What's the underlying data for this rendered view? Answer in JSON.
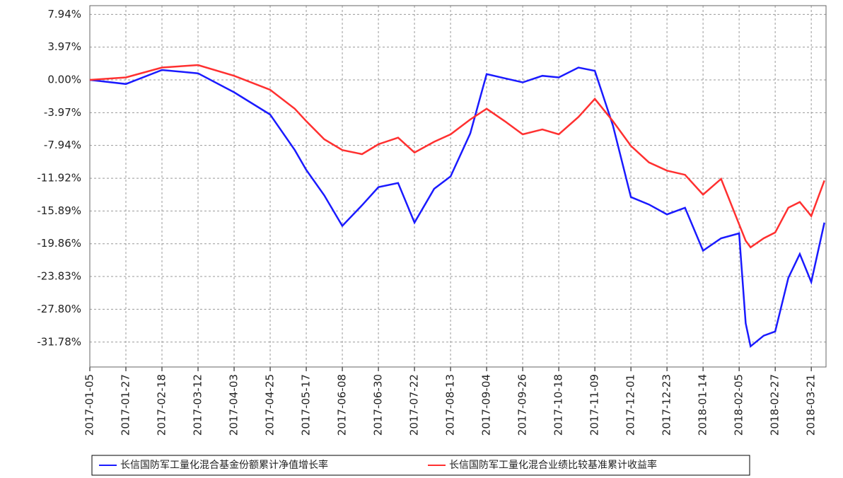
{
  "chart_data": {
    "type": "line",
    "x": [
      "2017-01-05",
      "2017-01-27",
      "2017-02-18",
      "2017-03-12",
      "2017-04-03",
      "2017-04-25",
      "2017-05-10",
      "2017-05-17",
      "2017-05-28",
      "2017-06-08",
      "2017-06-20",
      "2017-06-30",
      "2017-07-12",
      "2017-07-22",
      "2017-08-03",
      "2017-08-13",
      "2017-08-25",
      "2017-09-04",
      "2017-09-15",
      "2017-09-26",
      "2017-10-08",
      "2017-10-18",
      "2017-10-30",
      "2017-11-09",
      "2017-11-20",
      "2017-12-01",
      "2017-12-12",
      "2017-12-23",
      "2018-01-03",
      "2018-01-14",
      "2018-01-25",
      "2018-02-05",
      "2018-02-09",
      "2018-02-12",
      "2018-02-20",
      "2018-02-27",
      "2018-03-07",
      "2018-03-14",
      "2018-03-21",
      "2018-03-29"
    ],
    "series": [
      {
        "name": "长信国防军工量化混合基金份额累计净值增长率",
        "color": "#1a1aff",
        "values": [
          0,
          -0.5,
          1.2,
          0.8,
          -1.5,
          -4.2,
          -8.5,
          -10.9,
          -14.0,
          -17.7,
          -15.2,
          -13.0,
          -12.5,
          -17.3,
          -13.2,
          -11.7,
          -6.5,
          0.7,
          0.2,
          -0.3,
          0.5,
          0.3,
          1.5,
          1.1,
          -5.5,
          -14.2,
          -15.1,
          -16.3,
          -15.5,
          -20.7,
          -19.2,
          -18.6,
          -29.5,
          -32.3,
          -31.0,
          -30.5,
          -24.0,
          -21.1,
          -24.5,
          -17.3
        ]
      },
      {
        "name": "长信国防军工量化混合业绩比较基准累计收益率",
        "color": "#ff3030",
        "values": [
          0,
          0.3,
          1.5,
          1.8,
          0.5,
          -1.2,
          -3.5,
          -5.0,
          -7.2,
          -8.5,
          -9.0,
          -7.8,
          -7.0,
          -8.8,
          -7.5,
          -6.6,
          -4.8,
          -3.5,
          -5.0,
          -6.6,
          -6.0,
          -6.6,
          -4.5,
          -2.3,
          -5.0,
          -8.0,
          -10.0,
          -11.0,
          -11.5,
          -13.9,
          -12.0,
          -17.5,
          -19.5,
          -20.3,
          -19.2,
          -18.5,
          -15.5,
          -14.8,
          -16.5,
          -12.2
        ]
      }
    ],
    "xlim": [
      "2017-01-05",
      "2018-03-30"
    ],
    "xticks": [
      "2017-01-05",
      "2017-01-27",
      "2017-02-18",
      "2017-03-12",
      "2017-04-03",
      "2017-04-25",
      "2017-05-17",
      "2017-06-08",
      "2017-06-30",
      "2017-07-22",
      "2017-08-13",
      "2017-09-04",
      "2017-09-26",
      "2017-10-18",
      "2017-11-09",
      "2017-12-01",
      "2017-12-23",
      "2018-01-14",
      "2018-02-05",
      "2018-02-27",
      "2018-03-21"
    ],
    "ylim": [
      -34.8,
      9.0
    ],
    "yticks": [
      {
        "value": 7.94,
        "label": "7.94%"
      },
      {
        "value": 3.97,
        "label": "3.97%"
      },
      {
        "value": 0.0,
        "label": "0.00%"
      },
      {
        "value": -3.97,
        "label": "-3.97%"
      },
      {
        "value": -7.94,
        "label": "-7.94%"
      },
      {
        "value": -11.92,
        "label": "-11.92%"
      },
      {
        "value": -15.89,
        "label": "-15.89%"
      },
      {
        "value": -19.86,
        "label": "-19.86%"
      },
      {
        "value": -23.83,
        "label": "-23.83%"
      },
      {
        "value": -27.8,
        "label": "-27.80%"
      },
      {
        "value": -31.78,
        "label": "-31.78%"
      }
    ],
    "grid": true,
    "legend": "bottom"
  }
}
